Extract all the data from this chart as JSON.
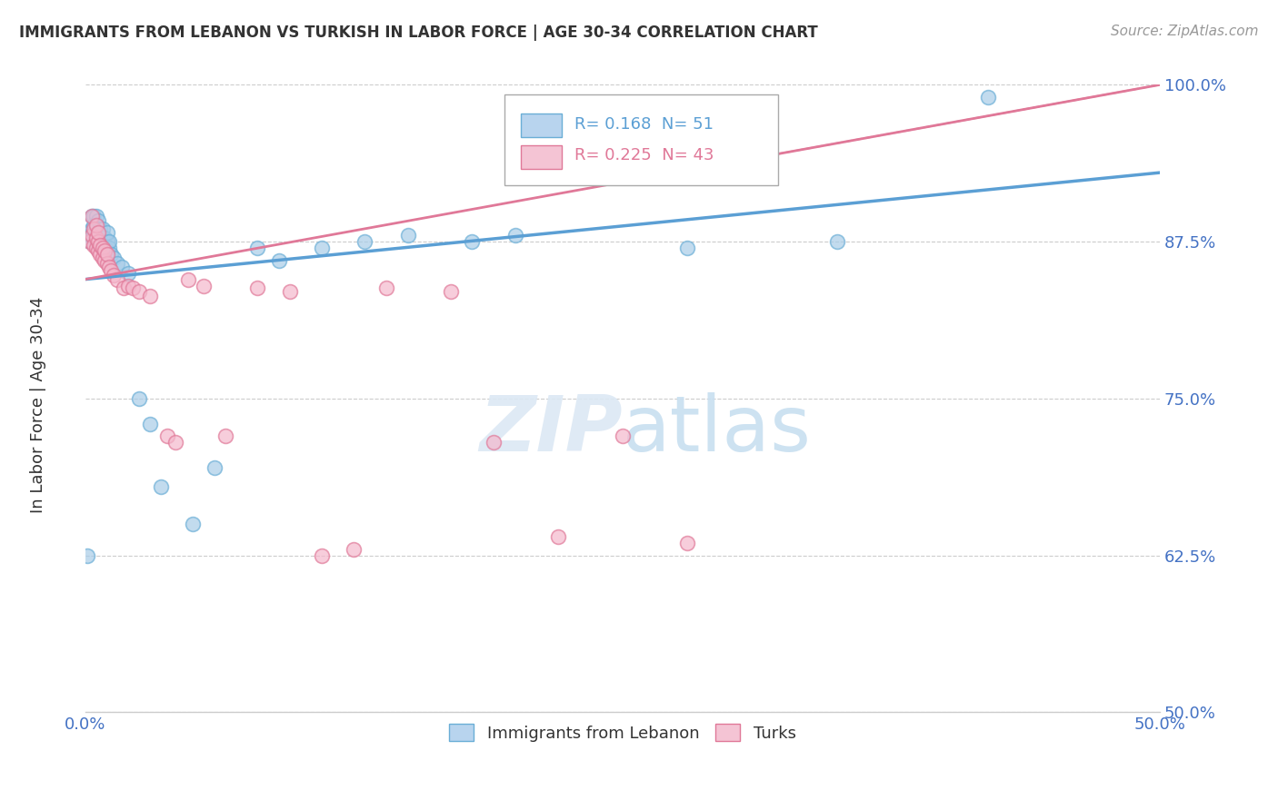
{
  "title": "IMMIGRANTS FROM LEBANON VS TURKISH IN LABOR FORCE | AGE 30-34 CORRELATION CHART",
  "source": "Source: ZipAtlas.com",
  "ylabel": "In Labor Force | Age 30-34",
  "xlim": [
    0.0,
    0.5
  ],
  "ylim": [
    0.5,
    1.0
  ],
  "xticks": [
    0.0,
    0.05,
    0.1,
    0.15,
    0.2,
    0.25,
    0.3,
    0.35,
    0.4,
    0.45,
    0.5
  ],
  "yticks": [
    0.5,
    0.625,
    0.75,
    0.875,
    1.0
  ],
  "ytick_labels": [
    "50.0%",
    "62.5%",
    "75.0%",
    "87.5%",
    "100.0%"
  ],
  "lebanon_R": 0.168,
  "lebanon_N": 51,
  "turks_R": 0.225,
  "turks_N": 43,
  "lebanon_color": "#a8cce8",
  "turks_color": "#f4b8cc",
  "lebanon_edge_color": "#6aaed6",
  "turks_edge_color": "#e07898",
  "lebanon_line_color": "#5b9fd4",
  "turks_line_color": "#e07898",
  "legend_box_color_lebanon": "#b8d4ee",
  "legend_box_color_turks": "#f4c4d4",
  "background_color": "#ffffff",
  "grid_color": "#cccccc",
  "lebanon_points_x": [
    0.001,
    0.002,
    0.002,
    0.003,
    0.003,
    0.003,
    0.004,
    0.004,
    0.004,
    0.004,
    0.005,
    0.005,
    0.005,
    0.005,
    0.006,
    0.006,
    0.006,
    0.006,
    0.007,
    0.007,
    0.007,
    0.008,
    0.008,
    0.008,
    0.009,
    0.009,
    0.01,
    0.01,
    0.01,
    0.011,
    0.011,
    0.012,
    0.013,
    0.015,
    0.017,
    0.02,
    0.025,
    0.03,
    0.035,
    0.05,
    0.06,
    0.08,
    0.09,
    0.11,
    0.13,
    0.15,
    0.18,
    0.2,
    0.28,
    0.35,
    0.42
  ],
  "lebanon_points_y": [
    0.625,
    0.875,
    0.88,
    0.885,
    0.88,
    0.895,
    0.878,
    0.882,
    0.888,
    0.895,
    0.875,
    0.882,
    0.888,
    0.895,
    0.875,
    0.878,
    0.882,
    0.892,
    0.872,
    0.878,
    0.885,
    0.87,
    0.878,
    0.885,
    0.872,
    0.878,
    0.868,
    0.875,
    0.882,
    0.87,
    0.875,
    0.865,
    0.862,
    0.858,
    0.855,
    0.85,
    0.75,
    0.73,
    0.68,
    0.65,
    0.695,
    0.87,
    0.86,
    0.87,
    0.875,
    0.88,
    0.875,
    0.88,
    0.87,
    0.875,
    0.99
  ],
  "turks_points_x": [
    0.002,
    0.003,
    0.003,
    0.004,
    0.004,
    0.005,
    0.005,
    0.005,
    0.006,
    0.006,
    0.006,
    0.007,
    0.007,
    0.008,
    0.008,
    0.009,
    0.009,
    0.01,
    0.01,
    0.011,
    0.012,
    0.013,
    0.015,
    0.018,
    0.02,
    0.022,
    0.025,
    0.03,
    0.038,
    0.042,
    0.048,
    0.055,
    0.065,
    0.08,
    0.095,
    0.11,
    0.125,
    0.14,
    0.17,
    0.19,
    0.22,
    0.25,
    0.28
  ],
  "turks_points_y": [
    0.875,
    0.88,
    0.895,
    0.872,
    0.885,
    0.87,
    0.878,
    0.888,
    0.868,
    0.875,
    0.882,
    0.865,
    0.872,
    0.862,
    0.87,
    0.86,
    0.868,
    0.858,
    0.865,
    0.855,
    0.852,
    0.848,
    0.845,
    0.838,
    0.84,
    0.838,
    0.835,
    0.832,
    0.72,
    0.715,
    0.845,
    0.84,
    0.72,
    0.838,
    0.835,
    0.625,
    0.63,
    0.838,
    0.835,
    0.715,
    0.64,
    0.72,
    0.635
  ],
  "lebanon_trend_x0": 0.0,
  "lebanon_trend_y0": 0.845,
  "lebanon_trend_x1": 0.5,
  "lebanon_trend_y1": 0.93,
  "turks_trend_x0": 0.0,
  "turks_trend_y0": 0.845,
  "turks_trend_x1": 0.5,
  "turks_trend_y1": 1.0
}
